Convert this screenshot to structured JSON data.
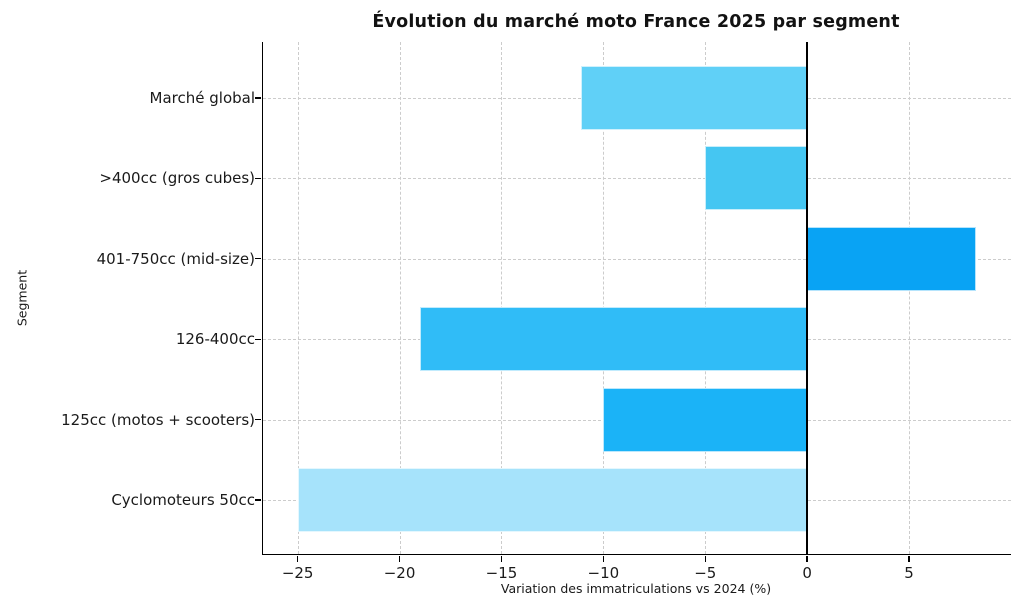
{
  "chart_data": {
    "type": "bar",
    "orientation": "horizontal",
    "title": "Évolution du marché moto France 2025 par segment",
    "xlabel": "Variation des immatriculations vs 2024 (%)",
    "ylabel": "Segment",
    "categories": [
      "Marché global",
      ">400cc (gros cubes)",
      "401-750cc (mid-size)",
      "126-400cc",
      "125cc (motos + scooters)",
      "Cyclomoteurs 50cc"
    ],
    "values": [
      -11.1,
      -5,
      8.3,
      -19,
      -10,
      -25
    ],
    "bar_colors": [
      "#60D0F7",
      "#45C6F2",
      "#09A3F4",
      "#30BCF7",
      "#1BB3F7",
      "#A6E3FB"
    ],
    "xticks": [
      -25,
      -20,
      -15,
      -10,
      -5,
      0,
      5
    ],
    "xlim": [
      -26.7,
      10.0
    ],
    "grid": true,
    "grid_color": "#cccccc",
    "zero_line_color": "#000000",
    "axis_color": "#000000",
    "background": "#ffffff"
  }
}
